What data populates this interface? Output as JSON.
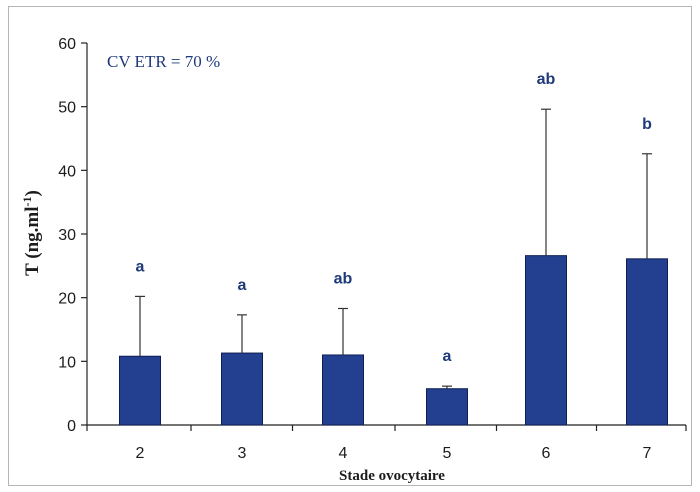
{
  "chart_data": {
    "type": "bar",
    "categories": [
      "2",
      "3",
      "4",
      "5",
      "6",
      "7"
    ],
    "values": [
      10.8,
      11.3,
      11.0,
      5.7,
      26.6,
      26.1
    ],
    "error_upper": [
      20.2,
      17.3,
      18.3,
      6.1,
      49.6,
      42.6
    ],
    "significance": [
      "a",
      "a",
      "ab",
      "a",
      "ab",
      "b"
    ],
    "xlabel": "Stade ovocytaire",
    "ylabel": "T (ng.ml",
    "ylabel_sup": "-1",
    "ylabel_close": ")",
    "annotation": "CV ETR = 70 %",
    "ylim": [
      0,
      60
    ],
    "yticks": [
      "0",
      "10",
      "20",
      "30",
      "40",
      "50",
      "60"
    ],
    "bar_color": "#233f8f",
    "text_color": "#1f3a7a",
    "grid": false,
    "legend": false
  }
}
